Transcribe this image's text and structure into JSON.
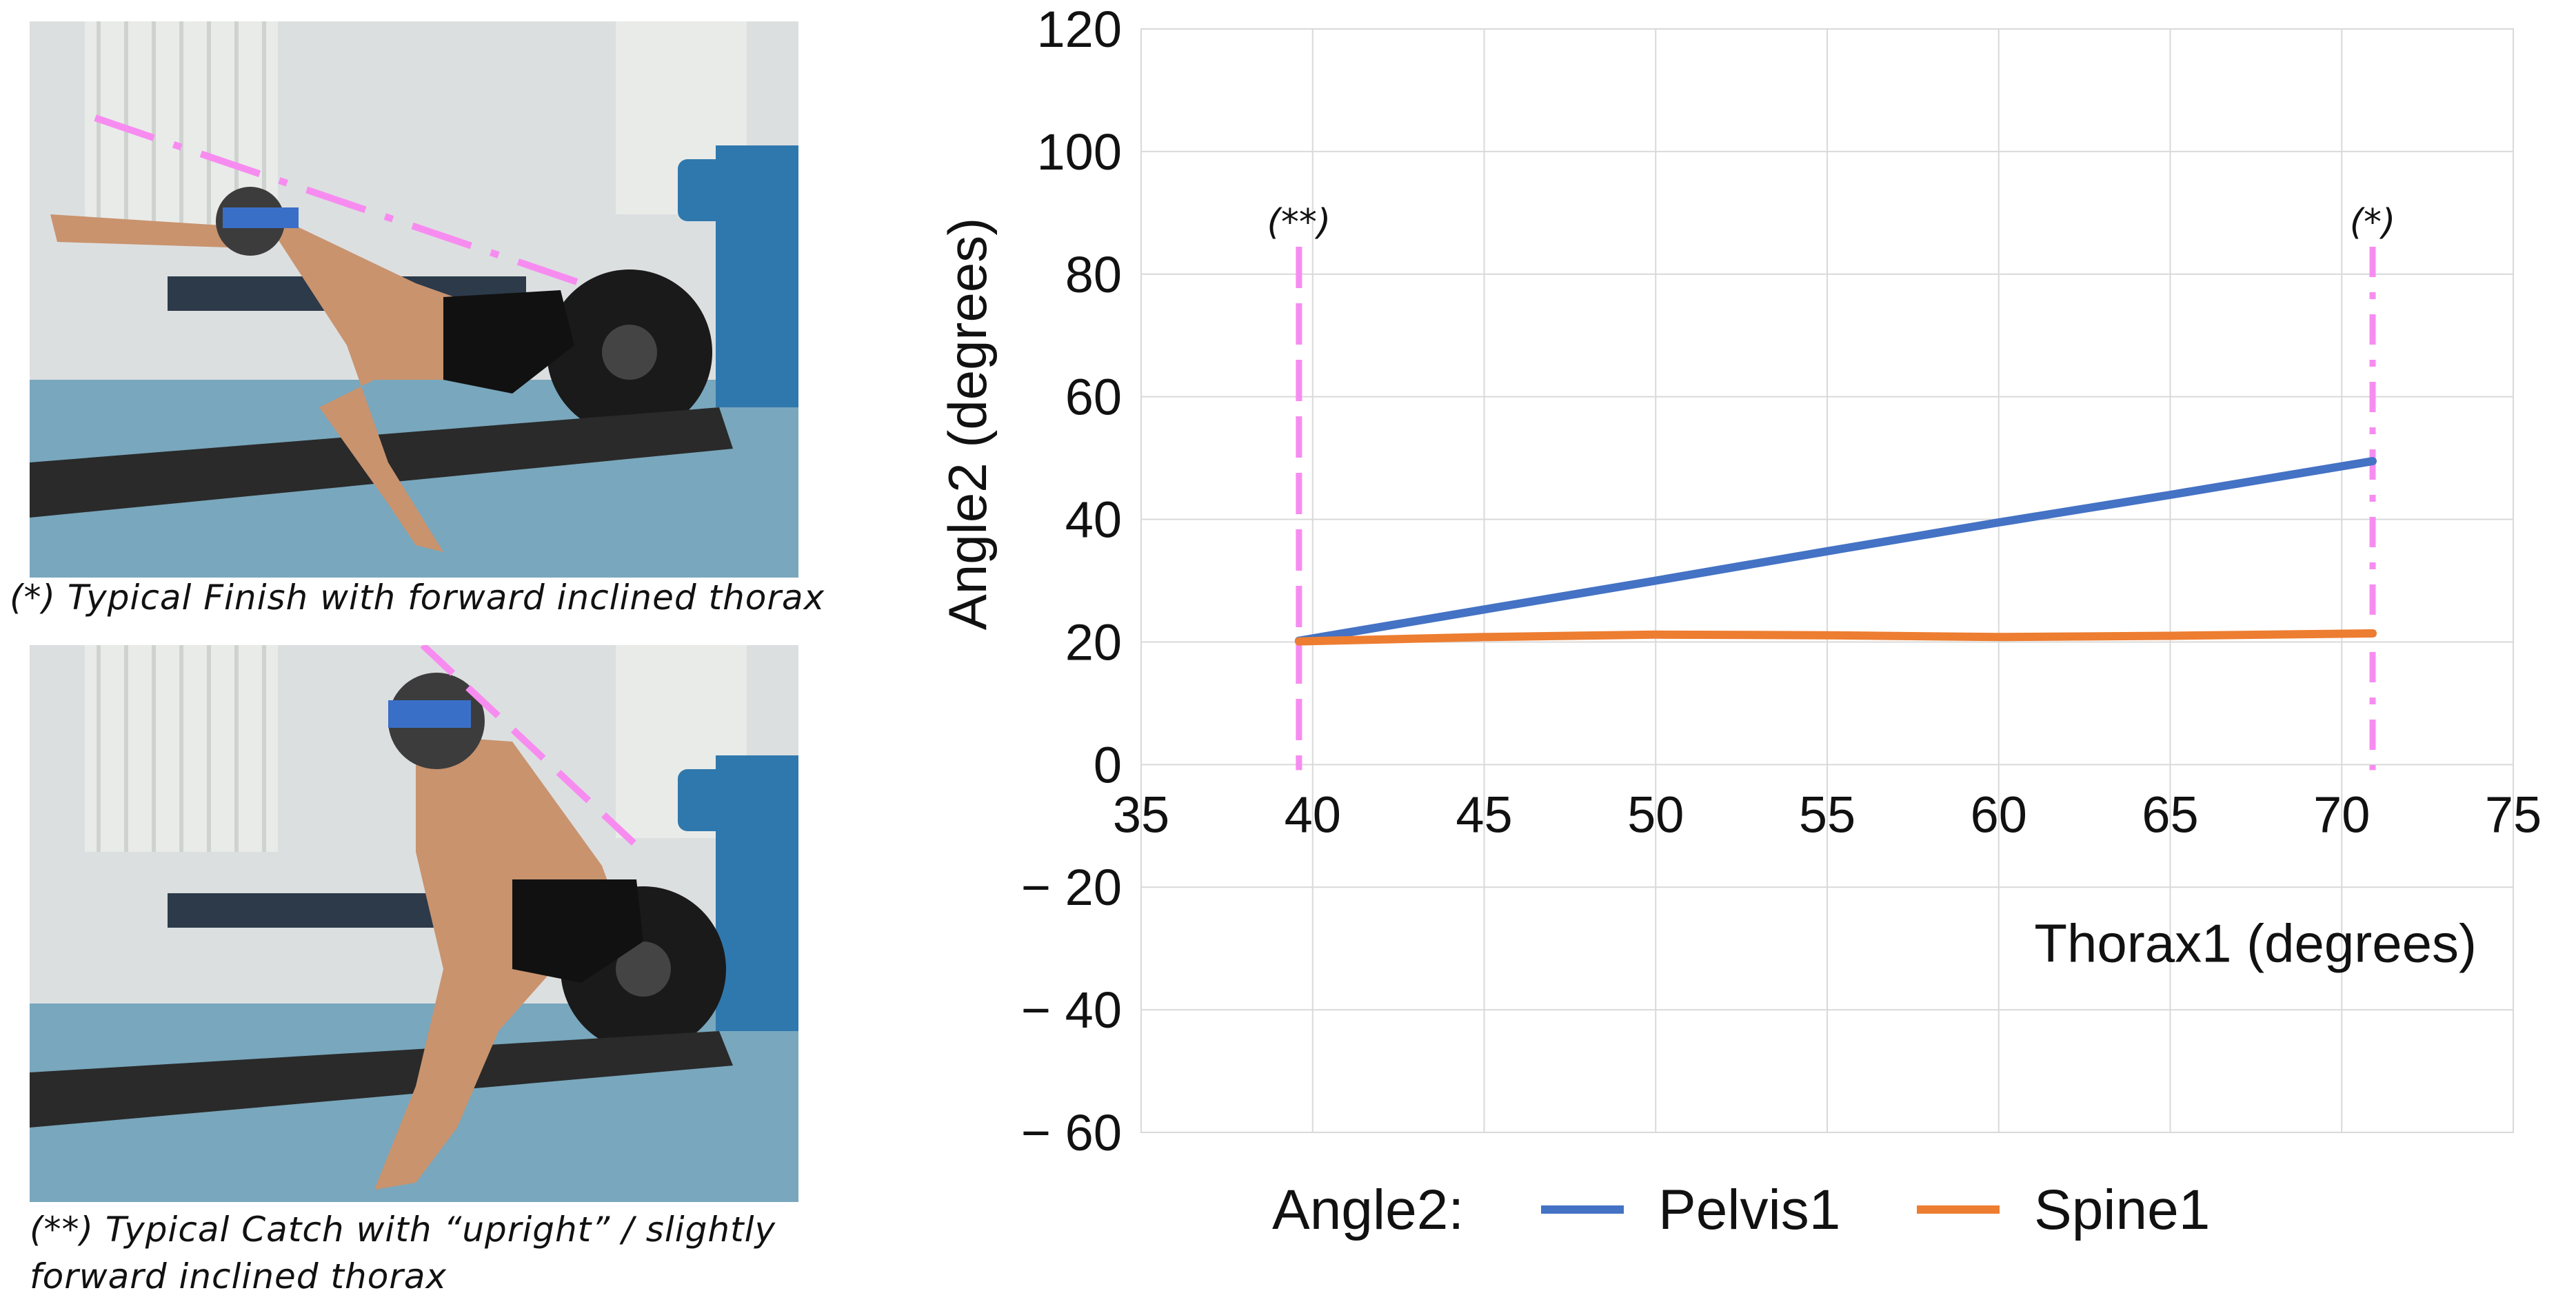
{
  "captions": {
    "finish": "(*)  Typical Finish with forward inclined thorax",
    "catch_line1": "(**)  Typical Catch with “upright” / slightly",
    "catch_line2": "forward inclined thorax"
  },
  "chart_data": {
    "type": "line",
    "xlabel": "Thorax1 (degrees)",
    "ylabel": "Angle2 (degrees)",
    "xlim": [
      35,
      75
    ],
    "ylim": [
      -60,
      120
    ],
    "x_ticks": [
      35,
      40,
      45,
      50,
      55,
      60,
      65,
      70,
      75
    ],
    "x_tick_labels": [
      "35",
      "40",
      "45",
      "50",
      "55",
      "60",
      "65",
      "70",
      "75"
    ],
    "y_ticks": [
      120,
      100,
      80,
      60,
      40,
      20,
      0,
      -20,
      -40,
      -60
    ],
    "y_tick_labels": [
      "120",
      "100",
      "80",
      "60",
      "40",
      "20",
      "0",
      "− 20",
      "− 40",
      "− 60"
    ],
    "grid": true,
    "legend": {
      "title": "Angle2:",
      "position": "bottom"
    },
    "series": [
      {
        "name": "Pelvis1",
        "color": "#4472c4",
        "x": [
          39.6,
          45,
          50,
          55,
          60,
          65,
          70.9
        ],
        "y": [
          20.2,
          25.3,
          30,
          34.8,
          39.5,
          44,
          49.5
        ]
      },
      {
        "name": "Spine1",
        "color": "#ed7d31",
        "x": [
          39.6,
          45,
          50,
          55,
          60,
          65,
          70.9
        ],
        "y": [
          20.1,
          20.8,
          21.2,
          21.1,
          20.8,
          21.0,
          21.4
        ]
      }
    ],
    "markers": [
      {
        "x": 39.6,
        "label": "(**)",
        "style": "dashed",
        "color": "#f78cf0"
      },
      {
        "x": 70.9,
        "label": "(*)",
        "style": "dash-dot",
        "color": "#f78cf0"
      }
    ]
  }
}
